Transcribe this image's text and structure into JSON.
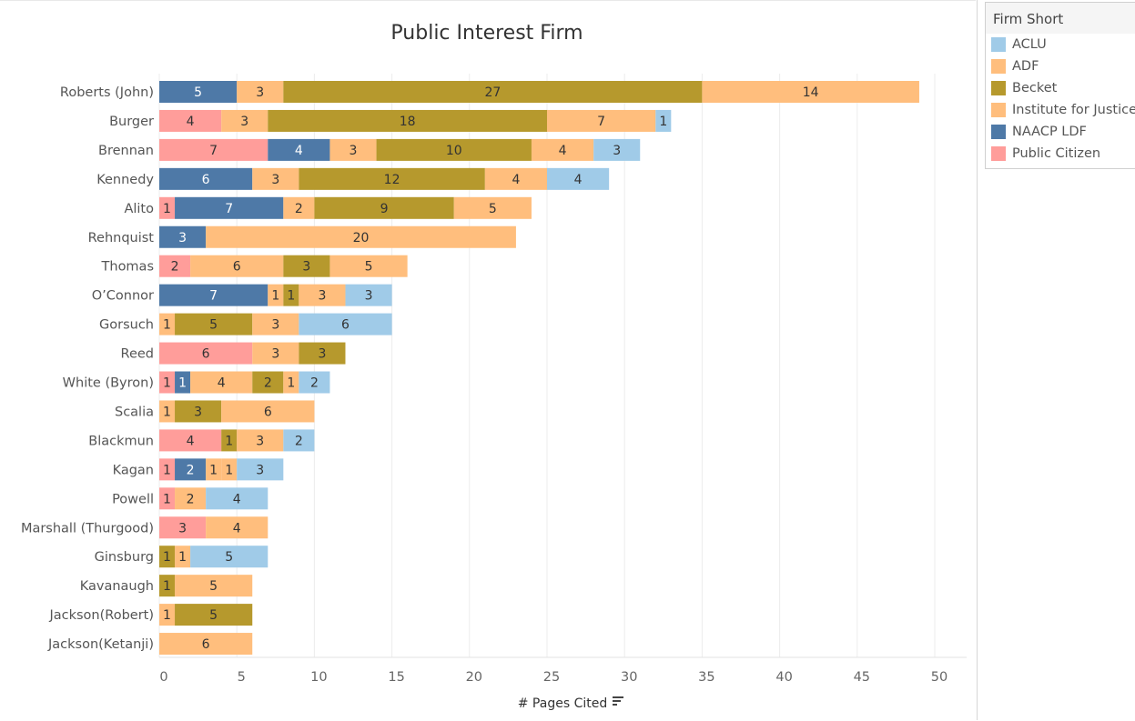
{
  "chart_data": {
    "type": "bar",
    "orientation": "horizontal",
    "stacked": true,
    "title": "Public Interest Firm",
    "xlabel": "# Pages Cited",
    "ylabel": "",
    "xlim": [
      0,
      52
    ],
    "xticks": [
      0,
      5,
      10,
      15,
      20,
      25,
      30,
      35,
      40,
      45,
      50
    ],
    "grid": "vertical",
    "legend_title": "Firm Short",
    "legend_position": "right",
    "series_colors": {
      "ACLU": "#a0cbe8",
      "ADF": "#ffbe7d",
      "Becket": "#b6992d",
      "Institute for Justice": "#ffbe7d",
      "NAACP LDF": "#4e79a7",
      "Public Citizen": "#ff9d9a"
    },
    "legend": [
      "ACLU",
      "ADF",
      "Becket",
      "Institute for Justice",
      "NAACP LDF",
      "Public Citizen"
    ],
    "categories": [
      {
        "name": "Roberts (John)",
        "segments": [
          [
            "NAACP LDF",
            5
          ],
          [
            "ADF",
            3
          ],
          [
            "Becket",
            27
          ],
          [
            "Institute for Justice",
            14
          ]
        ]
      },
      {
        "name": "Burger",
        "segments": [
          [
            "Public Citizen",
            4
          ],
          [
            "ADF",
            3
          ],
          [
            "Becket",
            18
          ],
          [
            "Institute for Justice",
            7
          ],
          [
            "ACLU",
            1
          ]
        ]
      },
      {
        "name": "Brennan",
        "segments": [
          [
            "Public Citizen",
            7
          ],
          [
            "NAACP LDF",
            4
          ],
          [
            "ADF",
            3
          ],
          [
            "Becket",
            10
          ],
          [
            "Institute for Justice",
            4
          ],
          [
            "ACLU",
            3
          ]
        ]
      },
      {
        "name": "Kennedy",
        "segments": [
          [
            "NAACP LDF",
            6
          ],
          [
            "ADF",
            3
          ],
          [
            "Becket",
            12
          ],
          [
            "Institute for Justice",
            4
          ],
          [
            "ACLU",
            4
          ]
        ]
      },
      {
        "name": "Alito",
        "segments": [
          [
            "Public Citizen",
            1
          ],
          [
            "NAACP LDF",
            7
          ],
          [
            "ADF",
            2
          ],
          [
            "Becket",
            9
          ],
          [
            "Institute for Justice",
            5
          ]
        ]
      },
      {
        "name": "Rehnquist",
        "segments": [
          [
            "NAACP LDF",
            3
          ],
          [
            "Institute for Justice",
            20
          ]
        ]
      },
      {
        "name": "Thomas",
        "segments": [
          [
            "Public Citizen",
            2
          ],
          [
            "ADF",
            6
          ],
          [
            "Becket",
            3
          ],
          [
            "Institute for Justice",
            5
          ]
        ]
      },
      {
        "name": "O’Connor",
        "segments": [
          [
            "NAACP LDF",
            7
          ],
          [
            "ADF",
            1
          ],
          [
            "Becket",
            1
          ],
          [
            "Institute for Justice",
            3
          ],
          [
            "ACLU",
            3
          ]
        ]
      },
      {
        "name": "Gorsuch",
        "segments": [
          [
            "ADF",
            1
          ],
          [
            "Becket",
            5
          ],
          [
            "Institute for Justice",
            3
          ],
          [
            "ACLU",
            6
          ]
        ]
      },
      {
        "name": "Reed",
        "segments": [
          [
            "Public Citizen",
            6
          ],
          [
            "ADF",
            3
          ],
          [
            "Becket",
            3
          ]
        ]
      },
      {
        "name": "White (Byron)",
        "segments": [
          [
            "Public Citizen",
            1
          ],
          [
            "NAACP LDF",
            1
          ],
          [
            "ADF",
            4
          ],
          [
            "Becket",
            2
          ],
          [
            "Institute for Justice",
            1
          ],
          [
            "ACLU",
            2
          ]
        ]
      },
      {
        "name": "Scalia",
        "segments": [
          [
            "ADF",
            1
          ],
          [
            "Becket",
            3
          ],
          [
            "Institute for Justice",
            6
          ]
        ]
      },
      {
        "name": "Blackmun",
        "segments": [
          [
            "Public Citizen",
            4
          ],
          [
            "Becket",
            1
          ],
          [
            "Institute for Justice",
            3
          ],
          [
            "ACLU",
            2
          ]
        ]
      },
      {
        "name": "Kagan",
        "segments": [
          [
            "Public Citizen",
            1
          ],
          [
            "NAACP LDF",
            2
          ],
          [
            "ADF",
            1
          ],
          [
            "Institute for Justice",
            1
          ],
          [
            "ACLU",
            3
          ]
        ]
      },
      {
        "name": "Powell",
        "segments": [
          [
            "Public Citizen",
            1
          ],
          [
            "ADF",
            2
          ],
          [
            "ACLU",
            4
          ]
        ]
      },
      {
        "name": "Marshall (Thurgood)",
        "segments": [
          [
            "Public Citizen",
            3
          ],
          [
            "Institute for Justice",
            4
          ]
        ]
      },
      {
        "name": "Ginsburg",
        "segments": [
          [
            "Becket",
            1
          ],
          [
            "Institute for Justice",
            1
          ],
          [
            "ACLU",
            5
          ]
        ]
      },
      {
        "name": "Kavanaugh",
        "segments": [
          [
            "Becket",
            1
          ],
          [
            "Institute for Justice",
            5
          ]
        ]
      },
      {
        "name": "Jackson(Robert)",
        "segments": [
          [
            "ADF",
            1
          ],
          [
            "Becket",
            5
          ]
        ]
      },
      {
        "name": "Jackson(Ketanji)",
        "segments": [
          [
            "Institute for Justice",
            6
          ]
        ]
      }
    ]
  },
  "icons": {
    "sort_icon": "sort-descending-icon"
  }
}
